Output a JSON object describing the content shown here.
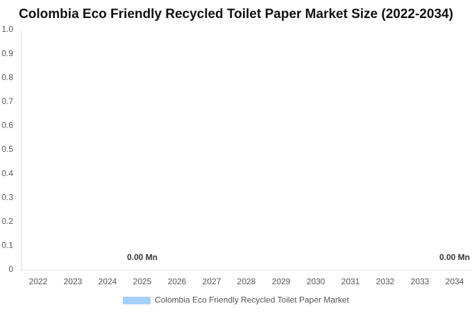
{
  "chart_data": {
    "type": "bar",
    "title": "Colombia Eco Friendly Recycled Toilet Paper Market Size (2022-2034)",
    "categories": [
      "2022",
      "2023",
      "2024",
      "2025",
      "2026",
      "2027",
      "2028",
      "2029",
      "2030",
      "2031",
      "2032",
      "2033",
      "2034"
    ],
    "series": [
      {
        "name": "Colombia Eco Friendly Recycled Toilet Paper Market",
        "color": "#a6d0fb",
        "values": [
          0,
          0,
          0,
          0,
          0,
          0,
          0,
          0,
          0,
          0,
          0,
          0,
          0
        ],
        "value_labels": [
          null,
          null,
          null,
          "0.00 Mn",
          null,
          null,
          null,
          null,
          null,
          null,
          null,
          null,
          "0.00 Mn"
        ]
      }
    ],
    "ylim": [
      0,
      1
    ],
    "yticks": [
      0,
      0.1,
      0.2,
      0.3,
      0.4,
      0.5,
      0.6,
      0.7,
      0.8,
      0.9,
      {
        "value": 1,
        "label": "1.0"
      }
    ],
    "grid": false
  }
}
